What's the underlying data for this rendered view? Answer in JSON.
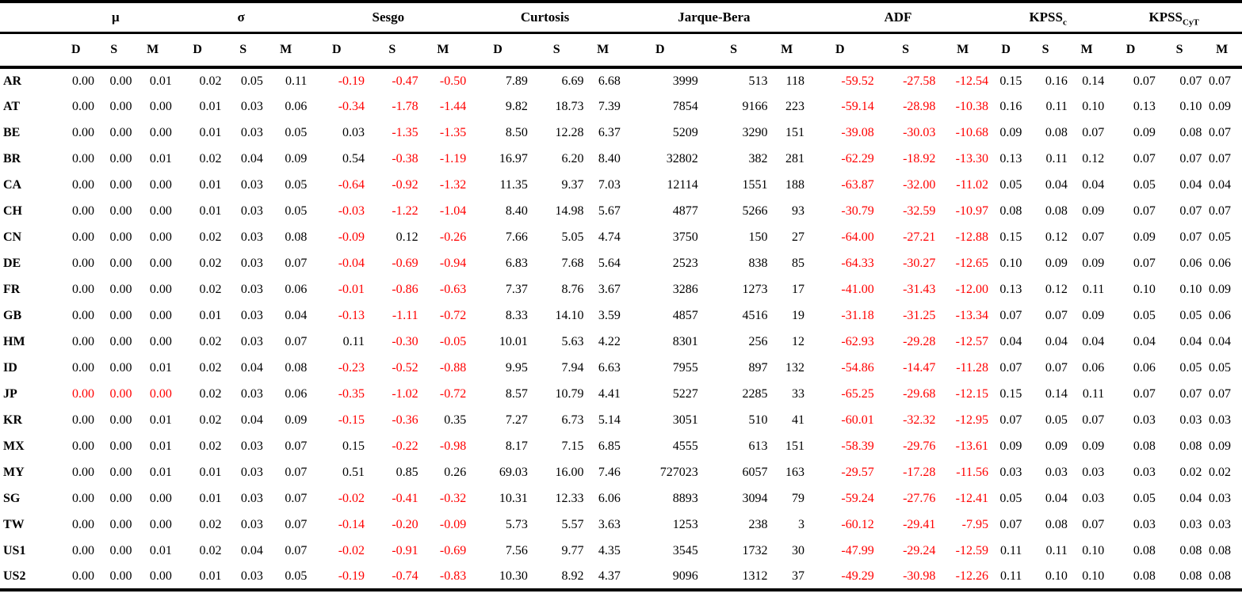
{
  "table": {
    "groups": [
      {
        "label": "μ",
        "subscript": ""
      },
      {
        "label": "σ",
        "subscript": ""
      },
      {
        "label": "Sesgo",
        "subscript": ""
      },
      {
        "label": "Curtosis",
        "subscript": ""
      },
      {
        "label": "Jarque-Bera",
        "subscript": ""
      },
      {
        "label": "ADF",
        "subscript": ""
      },
      {
        "label": "KPSS",
        "subscript": "c"
      },
      {
        "label": "KPSS",
        "subscript": "CyT"
      }
    ],
    "subheaders": [
      "D",
      "S",
      "M"
    ],
    "rows": [
      {
        "label": "AR",
        "values": [
          "0.00",
          "0.00",
          "0.01",
          "0.02",
          "0.05",
          "0.11",
          "-0.19",
          "-0.47",
          "-0.50",
          "7.89",
          "6.69",
          "6.68",
          "3999",
          "513",
          "118",
          "-59.52",
          "-27.58",
          "-12.54",
          "0.15",
          "0.16",
          "0.14",
          "0.07",
          "0.07",
          "0.07"
        ]
      },
      {
        "label": "AT",
        "values": [
          "0.00",
          "0.00",
          "0.00",
          "0.01",
          "0.03",
          "0.06",
          "-0.34",
          "-1.78",
          "-1.44",
          "9.82",
          "18.73",
          "7.39",
          "7854",
          "9166",
          "223",
          "-59.14",
          "-28.98",
          "-10.38",
          "0.16",
          "0.11",
          "0.10",
          "0.13",
          "0.10",
          "0.09"
        ]
      },
      {
        "label": "BE",
        "values": [
          "0.00",
          "0.00",
          "0.00",
          "0.01",
          "0.03",
          "0.05",
          "0.03",
          "-1.35",
          "-1.35",
          "8.50",
          "12.28",
          "6.37",
          "5209",
          "3290",
          "151",
          "-39.08",
          "-30.03",
          "-10.68",
          "0.09",
          "0.08",
          "0.07",
          "0.09",
          "0.08",
          "0.07"
        ]
      },
      {
        "label": "BR",
        "values": [
          "0.00",
          "0.00",
          "0.01",
          "0.02",
          "0.04",
          "0.09",
          "0.54",
          "-0.38",
          "-1.19",
          "16.97",
          "6.20",
          "8.40",
          "32802",
          "382",
          "281",
          "-62.29",
          "-18.92",
          "-13.30",
          "0.13",
          "0.11",
          "0.12",
          "0.07",
          "0.07",
          "0.07"
        ]
      },
      {
        "label": "CA",
        "values": [
          "0.00",
          "0.00",
          "0.00",
          "0.01",
          "0.03",
          "0.05",
          "-0.64",
          "-0.92",
          "-1.32",
          "11.35",
          "9.37",
          "7.03",
          "12114",
          "1551",
          "188",
          "-63.87",
          "-32.00",
          "-11.02",
          "0.05",
          "0.04",
          "0.04",
          "0.05",
          "0.04",
          "0.04"
        ]
      },
      {
        "label": "CH",
        "values": [
          "0.00",
          "0.00",
          "0.00",
          "0.01",
          "0.03",
          "0.05",
          "-0.03",
          "-1.22",
          "-1.04",
          "8.40",
          "14.98",
          "5.67",
          "4877",
          "5266",
          "93",
          "-30.79",
          "-32.59",
          "-10.97",
          "0.08",
          "0.08",
          "0.09",
          "0.07",
          "0.07",
          "0.07"
        ]
      },
      {
        "label": "CN",
        "values": [
          "0.00",
          "0.00",
          "0.00",
          "0.02",
          "0.03",
          "0.08",
          "-0.09",
          "0.12",
          "-0.26",
          "7.66",
          "5.05",
          "4.74",
          "3750",
          "150",
          "27",
          "-64.00",
          "-27.21",
          "-12.88",
          "0.15",
          "0.12",
          "0.07",
          "0.09",
          "0.07",
          "0.05"
        ]
      },
      {
        "label": "DE",
        "values": [
          "0.00",
          "0.00",
          "0.00",
          "0.02",
          "0.03",
          "0.07",
          "-0.04",
          "-0.69",
          "-0.94",
          "6.83",
          "7.68",
          "5.64",
          "2523",
          "838",
          "85",
          "-64.33",
          "-30.27",
          "-12.65",
          "0.10",
          "0.09",
          "0.09",
          "0.07",
          "0.06",
          "0.06"
        ]
      },
      {
        "label": "FR",
        "values": [
          "0.00",
          "0.00",
          "0.00",
          "0.02",
          "0.03",
          "0.06",
          "-0.01",
          "-0.86",
          "-0.63",
          "7.37",
          "8.76",
          "3.67",
          "3286",
          "1273",
          "17",
          "-41.00",
          "-31.43",
          "-12.00",
          "0.13",
          "0.12",
          "0.11",
          "0.10",
          "0.10",
          "0.09"
        ]
      },
      {
        "label": "GB",
        "values": [
          "0.00",
          "0.00",
          "0.00",
          "0.01",
          "0.03",
          "0.04",
          "-0.13",
          "-1.11",
          "-0.72",
          "8.33",
          "14.10",
          "3.59",
          "4857",
          "4516",
          "19",
          "-31.18",
          "-31.25",
          "-13.34",
          "0.07",
          "0.07",
          "0.09",
          "0.05",
          "0.05",
          "0.06"
        ]
      },
      {
        "label": "HM",
        "values": [
          "0.00",
          "0.00",
          "0.00",
          "0.02",
          "0.03",
          "0.07",
          "0.11",
          "-0.30",
          "-0.05",
          "10.01",
          "5.63",
          "4.22",
          "8301",
          "256",
          "12",
          "-62.93",
          "-29.28",
          "-12.57",
          "0.04",
          "0.04",
          "0.04",
          "0.04",
          "0.04",
          "0.04"
        ]
      },
      {
        "label": "ID",
        "values": [
          "0.00",
          "0.00",
          "0.01",
          "0.02",
          "0.04",
          "0.08",
          "-0.23",
          "-0.52",
          "-0.88",
          "9.95",
          "7.94",
          "6.63",
          "7955",
          "897",
          "132",
          "-54.86",
          "-14.47",
          "-11.28",
          "0.07",
          "0.07",
          "0.06",
          "0.06",
          "0.05",
          "0.05"
        ]
      },
      {
        "label": "JP",
        "values": [
          "0.00",
          "0.00",
          "0.00",
          "0.02",
          "0.03",
          "0.06",
          "-0.35",
          "-1.02",
          "-0.72",
          "8.57",
          "10.79",
          "4.41",
          "5227",
          "2285",
          "33",
          "-65.25",
          "-29.68",
          "-12.15",
          "0.15",
          "0.14",
          "0.11",
          "0.07",
          "0.07",
          "0.07"
        ]
      },
      {
        "label": "KR",
        "values": [
          "0.00",
          "0.00",
          "0.01",
          "0.02",
          "0.04",
          "0.09",
          "-0.15",
          "-0.36",
          "0.35",
          "7.27",
          "6.73",
          "5.14",
          "3051",
          "510",
          "41",
          "-60.01",
          "-32.32",
          "-12.95",
          "0.07",
          "0.05",
          "0.07",
          "0.03",
          "0.03",
          "0.03"
        ]
      },
      {
        "label": "MX",
        "values": [
          "0.00",
          "0.00",
          "0.01",
          "0.02",
          "0.03",
          "0.07",
          "0.15",
          "-0.22",
          "-0.98",
          "8.17",
          "7.15",
          "6.85",
          "4555",
          "613",
          "151",
          "-58.39",
          "-29.76",
          "-13.61",
          "0.09",
          "0.09",
          "0.09",
          "0.08",
          "0.08",
          "0.09"
        ]
      },
      {
        "label": "MY",
        "values": [
          "0.00",
          "0.00",
          "0.01",
          "0.01",
          "0.03",
          "0.07",
          "0.51",
          "0.85",
          "0.26",
          "69.03",
          "16.00",
          "7.46",
          "727023",
          "6057",
          "163",
          "-29.57",
          "-17.28",
          "-11.56",
          "0.03",
          "0.03",
          "0.03",
          "0.03",
          "0.02",
          "0.02"
        ]
      },
      {
        "label": "SG",
        "values": [
          "0.00",
          "0.00",
          "0.00",
          "0.01",
          "0.03",
          "0.07",
          "-0.02",
          "-0.41",
          "-0.32",
          "10.31",
          "12.33",
          "6.06",
          "8893",
          "3094",
          "79",
          "-59.24",
          "-27.76",
          "-12.41",
          "0.05",
          "0.04",
          "0.03",
          "0.05",
          "0.04",
          "0.03"
        ]
      },
      {
        "label": "TW",
        "values": [
          "0.00",
          "0.00",
          "0.00",
          "0.02",
          "0.03",
          "0.07",
          "-0.14",
          "-0.20",
          "-0.09",
          "5.73",
          "5.57",
          "3.63",
          "1253",
          "238",
          "3",
          "-60.12",
          "-29.41",
          "-7.95",
          "0.07",
          "0.08",
          "0.07",
          "0.03",
          "0.03",
          "0.03"
        ]
      },
      {
        "label": "US1",
        "values": [
          "0.00",
          "0.00",
          "0.01",
          "0.02",
          "0.04",
          "0.07",
          "-0.02",
          "-0.91",
          "-0.69",
          "7.56",
          "9.77",
          "4.35",
          "3545",
          "1732",
          "30",
          "-47.99",
          "-29.24",
          "-12.59",
          "0.11",
          "0.11",
          "0.10",
          "0.08",
          "0.08",
          "0.08"
        ]
      },
      {
        "label": "US2",
        "values": [
          "0.00",
          "0.00",
          "0.00",
          "0.01",
          "0.03",
          "0.05",
          "-0.19",
          "-0.74",
          "-0.83",
          "10.30",
          "8.92",
          "4.37",
          "9096",
          "1312",
          "37",
          "-49.29",
          "-30.98",
          "-12.26",
          "0.11",
          "0.10",
          "0.10",
          "0.08",
          "0.08",
          "0.08"
        ]
      }
    ],
    "forced_red_cells": {
      "JP": [
        0,
        1,
        2
      ]
    },
    "colors": {
      "negative_value": "#ff0000",
      "default_text": "#000000"
    }
  }
}
